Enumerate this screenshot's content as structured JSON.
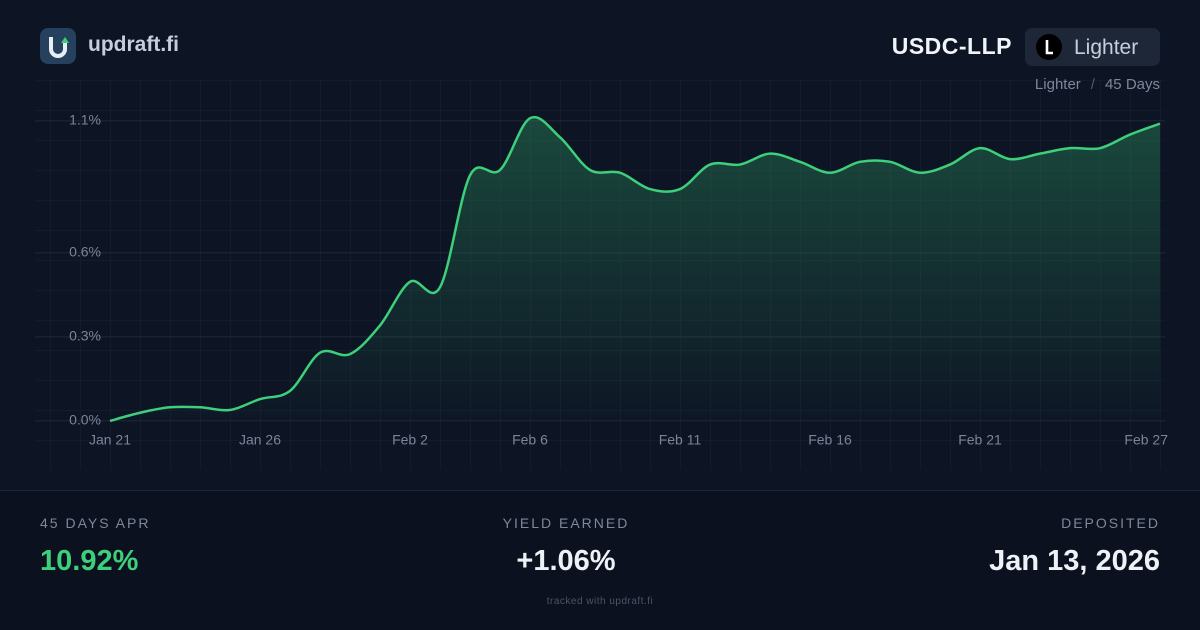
{
  "header": {
    "brand": "updraft.fi",
    "pool": "USDC-LLP",
    "badge": "Lighter",
    "breadcrumb": {
      "source": "Lighter",
      "separator": "/",
      "period": "45 Days"
    }
  },
  "chart_data": {
    "type": "area",
    "categories": [
      "Jan 21",
      null,
      null,
      null,
      null,
      "Jan 26",
      null,
      null,
      null,
      null,
      "Feb 2",
      null,
      null,
      null,
      "Feb 6",
      null,
      null,
      null,
      null,
      "Feb 11",
      null,
      null,
      null,
      null,
      "Feb 16",
      null,
      null,
      null,
      null,
      "Feb 21",
      null,
      null,
      null,
      null,
      null,
      "Feb 27"
    ],
    "values": [
      0,
      0.03,
      0.05,
      0.05,
      0.04,
      0.08,
      0.11,
      0.25,
      0.245,
      0.35,
      0.51,
      0.49,
      0.9,
      0.92,
      1.11,
      1.04,
      0.92,
      0.91,
      0.85,
      0.85,
      0.94,
      0.94,
      0.98,
      0.95,
      0.91,
      0.95,
      0.95,
      0.91,
      0.94,
      1.0,
      0.96,
      0.98,
      1.0,
      1.0,
      1.05,
      1.09
    ],
    "color": "#3ecf7a",
    "ylim": [
      -0.18,
      1.25
    ],
    "yticks": [
      {
        "value": 0,
        "label": "0.0%"
      },
      {
        "value": 0.308,
        "label": "0.3%"
      },
      {
        "value": 0.616,
        "label": "0.6%"
      },
      {
        "value": 1.1,
        "label": "1.1%"
      }
    ],
    "grid": true
  },
  "stats": [
    {
      "label": "45 DAYS APR",
      "value": "10.92%"
    },
    {
      "label": "YIELD EARNED",
      "value": "+1.06%"
    },
    {
      "label": "DEPOSITED",
      "value": "Jan 13, 2026"
    }
  ],
  "footer": "tracked with updraft.fi"
}
